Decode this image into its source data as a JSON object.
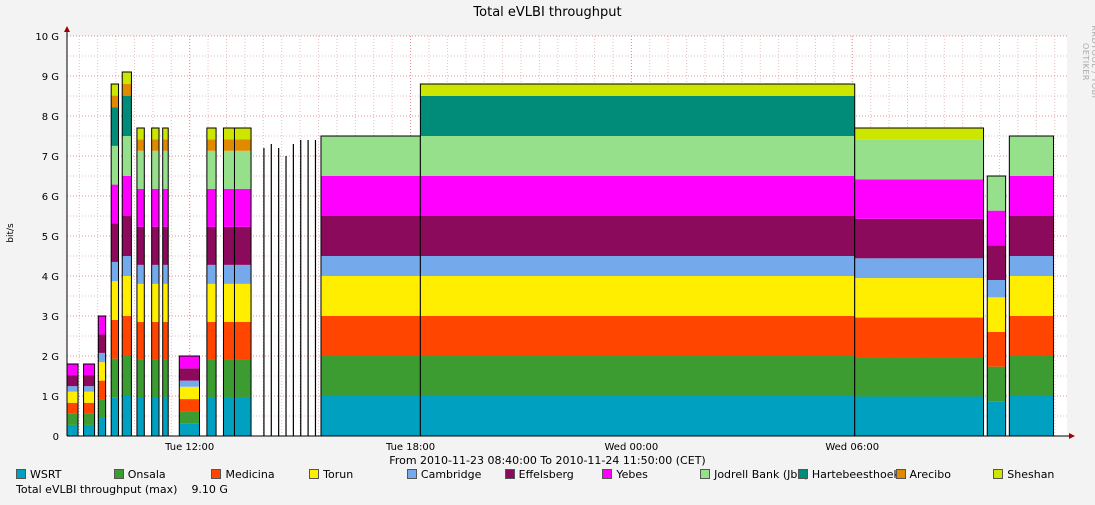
{
  "chart_data": {
    "type": "area",
    "stacked": true,
    "title": "Total eVLBI throughput",
    "ylabel": "bit/s",
    "xlabel": "From 2010-11-23 08:40:00 To 2010-11-24 11:50:00 (CET)",
    "ylim": [
      0,
      10
    ],
    "y_ticks": [
      "0",
      "1 G",
      "2 G",
      "3 G",
      "4 G",
      "5 G",
      "6 G",
      "7 G",
      "8 G",
      "9 G",
      "10 G"
    ],
    "x_ticks": [
      {
        "label": "Tue 12:00",
        "hours": 3.333
      },
      {
        "label": "Tue 18:00",
        "hours": 9.333
      },
      {
        "label": "Wed 00:00",
        "hours": 15.333
      },
      {
        "label": "Wed 06:00",
        "hours": 21.333
      }
    ],
    "xlim_hours": [
      0,
      27.167
    ],
    "grid": true,
    "watermark": "RRDTOOL / TOBI OETIKER",
    "series": [
      {
        "name": "WSRT",
        "color": "#00a0c0",
        "nominal": 1.0
      },
      {
        "name": "Onsala",
        "color": "#3c9c32",
        "nominal": 1.0
      },
      {
        "name": "Medicina",
        "color": "#ff4500",
        "nominal": 1.0
      },
      {
        "name": "Torun",
        "color": "#ffee00",
        "nominal": 1.0
      },
      {
        "name": "Cambridge",
        "color": "#74aaec",
        "nominal": 0.5
      },
      {
        "name": "Effelsberg",
        "color": "#8b0a5c",
        "nominal": 1.0
      },
      {
        "name": "Yebes",
        "color": "#ff00ff",
        "nominal": 1.0
      },
      {
        "name": "Jodrell Bank (Jb2)",
        "color": "#96e08c",
        "nominal": 1.0
      },
      {
        "name": "Hartebeesthoek",
        "color": "#008c78",
        "nominal": 1.0
      },
      {
        "name": "Arecibo",
        "color": "#e08a00",
        "nominal": 0.3
      },
      {
        "name": "Sheshan",
        "color": "#cce600",
        "nominal": 0.3
      }
    ],
    "timeline": [
      {
        "start": 0.0,
        "end": 0.3,
        "total": 1.8,
        "stations": [
          "WSRT",
          "Onsala",
          "Medicina",
          "Torun",
          "Cambridge",
          "Effelsberg",
          "Yebes"
        ]
      },
      {
        "start": 0.45,
        "end": 0.75,
        "total": 1.8,
        "stations": [
          "WSRT",
          "Onsala",
          "Medicina",
          "Torun",
          "Cambridge",
          "Effelsberg",
          "Yebes"
        ]
      },
      {
        "start": 0.85,
        "end": 1.05,
        "total": 3.0,
        "stations": [
          "WSRT",
          "Onsala",
          "Medicina",
          "Torun",
          "Cambridge",
          "Effelsberg",
          "Yebes"
        ]
      },
      {
        "start": 1.2,
        "end": 1.4,
        "total": 8.8,
        "stations": [
          "WSRT",
          "Onsala",
          "Medicina",
          "Torun",
          "Cambridge",
          "Effelsberg",
          "Yebes",
          "Jodrell Bank (Jb2)",
          "Hartebeesthoek",
          "Arecibo",
          "Sheshan"
        ]
      },
      {
        "start": 1.5,
        "end": 1.75,
        "total": 9.1,
        "stations": [
          "WSRT",
          "Onsala",
          "Medicina",
          "Torun",
          "Cambridge",
          "Effelsberg",
          "Yebes",
          "Jodrell Bank (Jb2)",
          "Hartebeesthoek",
          "Arecibo",
          "Sheshan"
        ]
      },
      {
        "start": 1.9,
        "end": 2.1,
        "total": 7.7,
        "stations": [
          "WSRT",
          "Onsala",
          "Medicina",
          "Torun",
          "Cambridge",
          "Effelsberg",
          "Yebes",
          "Jodrell Bank (Jb2)",
          "Arecibo",
          "Sheshan"
        ]
      },
      {
        "start": 2.3,
        "end": 2.5,
        "total": 7.7,
        "stations": [
          "WSRT",
          "Onsala",
          "Medicina",
          "Torun",
          "Cambridge",
          "Effelsberg",
          "Yebes",
          "Jodrell Bank (Jb2)",
          "Arecibo",
          "Sheshan"
        ]
      },
      {
        "start": 2.6,
        "end": 2.75,
        "total": 7.7,
        "stations": [
          "WSRT",
          "Onsala",
          "Medicina",
          "Torun",
          "Cambridge",
          "Effelsberg",
          "Yebes",
          "Jodrell Bank (Jb2)",
          "Arecibo",
          "Sheshan"
        ]
      },
      {
        "start": 3.05,
        "end": 3.6,
        "total": 2.0,
        "stations": [
          "WSRT",
          "Onsala",
          "Medicina",
          "Torun",
          "Cambridge",
          "Effelsberg",
          "Yebes"
        ]
      },
      {
        "start": 3.8,
        "end": 4.05,
        "total": 7.7,
        "stations": [
          "WSRT",
          "Onsala",
          "Medicina",
          "Torun",
          "Cambridge",
          "Effelsberg",
          "Yebes",
          "Jodrell Bank (Jb2)",
          "Arecibo",
          "Sheshan"
        ]
      },
      {
        "start": 4.25,
        "end": 4.55,
        "total": 7.7,
        "stations": [
          "WSRT",
          "Onsala",
          "Medicina",
          "Torun",
          "Cambridge",
          "Effelsberg",
          "Yebes",
          "Jodrell Bank (Jb2)",
          "Arecibo",
          "Sheshan"
        ]
      },
      {
        "start": 4.55,
        "end": 5.0,
        "total": 7.7,
        "stations": [
          "WSRT",
          "Onsala",
          "Medicina",
          "Torun",
          "Cambridge",
          "Effelsberg",
          "Yebes",
          "Jodrell Bank (Jb2)",
          "Arecibo",
          "Sheshan"
        ]
      },
      {
        "start": 6.9,
        "end": 9.6,
        "total": 7.5,
        "stations": [
          "WSRT",
          "Onsala",
          "Medicina",
          "Torun",
          "Cambridge",
          "Effelsberg",
          "Yebes",
          "Jodrell Bank (Jb2)"
        ]
      },
      {
        "start": 9.6,
        "end": 21.4,
        "total": 8.8,
        "stations": [
          "WSRT",
          "Onsala",
          "Medicina",
          "Torun",
          "Cambridge",
          "Effelsberg",
          "Yebes",
          "Jodrell Bank (Jb2)",
          "Hartebeesthoek",
          "Sheshan"
        ]
      },
      {
        "start": 21.4,
        "end": 24.9,
        "total": 7.7,
        "stations": [
          "WSRT",
          "Onsala",
          "Medicina",
          "Torun",
          "Cambridge",
          "Effelsberg",
          "Yebes",
          "Jodrell Bank (Jb2)",
          "Sheshan"
        ]
      },
      {
        "start": 25.0,
        "end": 25.5,
        "total": 6.5,
        "stations": [
          "WSRT",
          "Onsala",
          "Medicina",
          "Torun",
          "Cambridge",
          "Effelsberg",
          "Yebes",
          "Jodrell Bank (Jb2)"
        ]
      },
      {
        "start": 25.6,
        "end": 26.8,
        "total": 7.5,
        "stations": [
          "WSRT",
          "Onsala",
          "Medicina",
          "Torun",
          "Cambridge",
          "Effelsberg",
          "Yebes",
          "Jodrell Bank (Jb2)"
        ]
      }
    ],
    "spikes_total_only": [
      {
        "hours": 5.35,
        "total": 7.2
      },
      {
        "hours": 5.55,
        "total": 7.3
      },
      {
        "hours": 5.75,
        "total": 7.2
      },
      {
        "hours": 5.95,
        "total": 7.0
      },
      {
        "hours": 6.15,
        "total": 7.3
      },
      {
        "hours": 6.35,
        "total": 7.4
      },
      {
        "hours": 6.55,
        "total": 7.4
      },
      {
        "hours": 6.75,
        "total": 7.4
      }
    ]
  },
  "legend_label_total": "Total eVLBI throughput (max)",
  "legend_value_total": "9.10 G"
}
